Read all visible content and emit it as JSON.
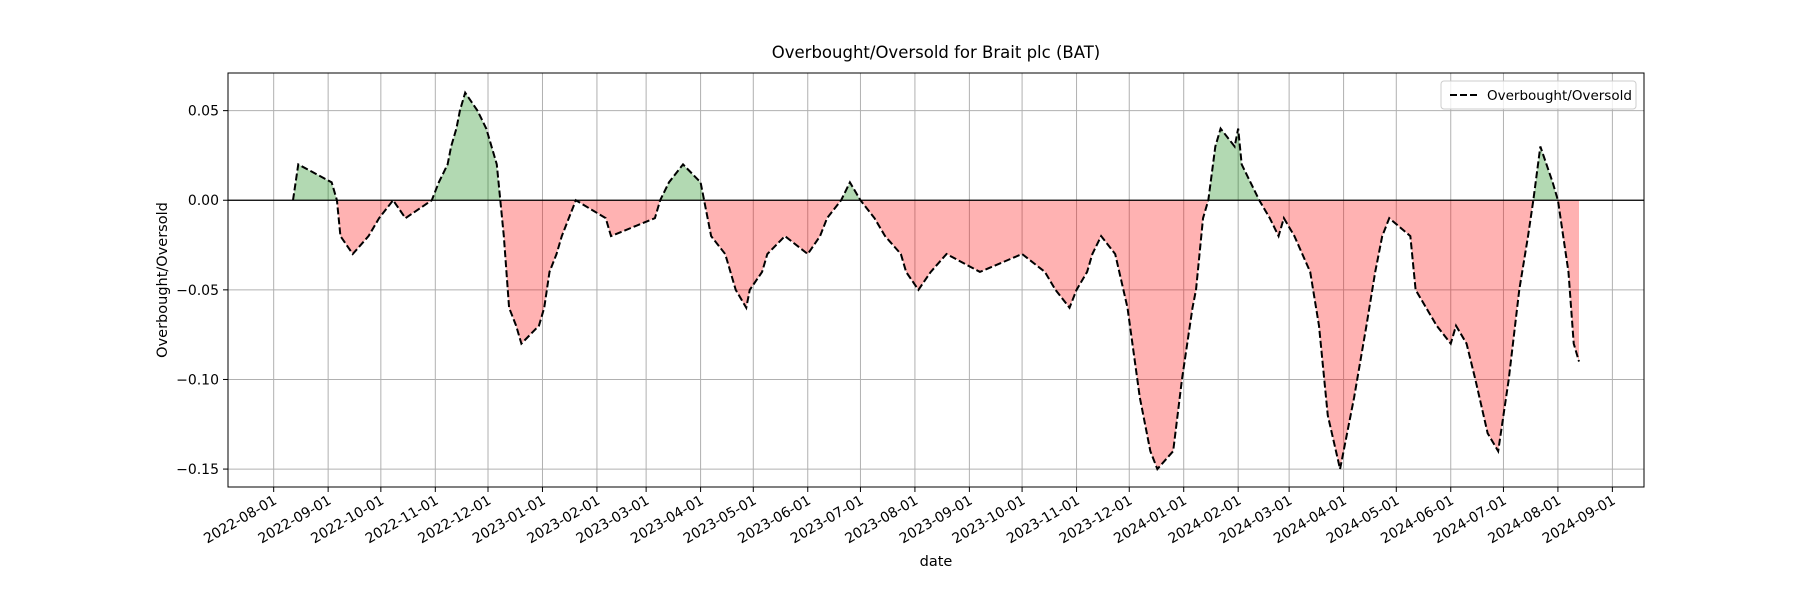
{
  "chart_data": {
    "type": "area-line",
    "title": "Overbought/Oversold for Brait plc (BAT)",
    "x_label": "date",
    "y_label": "Overbought/Oversold",
    "legend_position": "upper right",
    "grid": true,
    "hline": 0,
    "positive_color": "green",
    "negative_color": "red",
    "fill_alpha": 0.3,
    "xlim": [
      "2022-07-06",
      "2024-09-19"
    ],
    "ylim": [
      -0.16,
      0.071
    ],
    "xticks": [
      "2022-08-01",
      "2022-09-01",
      "2022-10-01",
      "2022-11-01",
      "2022-12-01",
      "2023-01-01",
      "2023-02-01",
      "2023-03-01",
      "2023-04-01",
      "2023-05-01",
      "2023-06-01",
      "2023-07-01",
      "2023-08-01",
      "2023-09-01",
      "2023-10-01",
      "2023-11-01",
      "2023-12-01",
      "2024-01-01",
      "2024-02-01",
      "2024-03-01",
      "2024-04-01",
      "2024-05-01",
      "2024-06-01",
      "2024-07-01",
      "2024-08-01",
      "2024-09-01"
    ],
    "yticks": [
      {
        "value": -0.15,
        "label": "−0.15"
      },
      {
        "value": -0.1,
        "label": "−0.10"
      },
      {
        "value": -0.05,
        "label": "−0.05"
      },
      {
        "value": 0,
        "label": "0.00"
      },
      0.05
    ],
    "x": [
      "2022-08-12",
      "2022-08-15",
      "2022-09-03",
      "2022-09-06",
      "2022-09-08",
      "2022-09-15",
      "2022-09-24",
      "2022-09-30",
      "2022-10-08",
      "2022-10-15",
      "2022-10-30",
      "2022-11-03",
      "2022-11-08",
      "2022-11-10",
      "2022-11-13",
      "2022-11-15",
      "2022-11-18",
      "2022-11-25",
      "2022-11-30",
      "2022-12-06",
      "2022-12-08",
      "2022-12-10",
      "2022-12-13",
      "2022-12-17",
      "2022-12-20",
      "2022-12-30",
      "2023-01-02",
      "2023-01-05",
      "2023-01-09",
      "2023-01-12",
      "2023-01-16",
      "2023-01-20",
      "2023-02-06",
      "2023-02-09",
      "2023-03-06",
      "2023-03-09",
      "2023-03-14",
      "2023-03-22",
      "2023-04-01",
      "2023-04-03",
      "2023-04-07",
      "2023-04-15",
      "2023-04-18",
      "2023-04-21",
      "2023-04-27",
      "2023-04-29",
      "2023-05-06",
      "2023-05-09",
      "2023-05-19",
      "2023-06-01",
      "2023-06-08",
      "2023-06-12",
      "2023-06-20",
      "2023-06-25",
      "2023-07-01",
      "2023-07-09",
      "2023-07-15",
      "2023-07-24",
      "2023-07-27",
      "2023-08-03",
      "2023-08-10",
      "2023-08-19",
      "2023-09-07",
      "2023-10-01",
      "2023-10-14",
      "2023-10-20",
      "2023-10-28",
      "2023-11-01",
      "2023-11-07",
      "2023-11-10",
      "2023-11-15",
      "2023-11-23",
      "2023-11-30",
      "2023-12-07",
      "2023-12-13",
      "2023-12-17",
      "2023-12-26",
      "2023-12-31",
      "2024-01-06",
      "2024-01-08",
      "2024-01-12",
      "2024-01-15",
      "2024-01-19",
      "2024-01-22",
      "2024-01-30",
      "2024-02-01",
      "2024-02-03",
      "2024-02-08",
      "2024-02-13",
      "2024-02-19",
      "2024-02-24",
      "2024-02-27",
      "2024-03-04",
      "2024-03-13",
      "2024-03-18",
      "2024-03-23",
      "2024-03-30",
      "2024-04-07",
      "2024-04-14",
      "2024-04-19",
      "2024-04-23",
      "2024-04-27",
      "2024-05-09",
      "2024-05-12",
      "2024-05-18",
      "2024-05-24",
      "2024-06-01",
      "2024-06-04",
      "2024-06-10",
      "2024-06-15",
      "2024-06-22",
      "2024-06-28",
      "2024-07-04",
      "2024-07-10",
      "2024-07-15",
      "2024-07-18",
      "2024-07-22",
      "2024-07-29",
      "2024-08-01",
      "2024-08-04",
      "2024-08-07",
      "2024-08-10",
      "2024-08-13"
    ],
    "series": [
      {
        "name": "Overbought/Oversold",
        "color": "#000000",
        "values": [
          0.0,
          0.02,
          0.01,
          0.0,
          -0.02,
          -0.03,
          -0.02,
          -0.01,
          0.0,
          -0.01,
          0.0,
          0.01,
          0.02,
          0.03,
          0.04,
          0.05,
          0.06,
          0.05,
          0.04,
          0.02,
          0.0,
          -0.02,
          -0.06,
          -0.07,
          -0.08,
          -0.07,
          -0.06,
          -0.04,
          -0.03,
          -0.02,
          -0.01,
          0.0,
          -0.01,
          -0.02,
          -0.01,
          0.0,
          0.01,
          0.02,
          0.01,
          0.0,
          -0.02,
          -0.03,
          -0.04,
          -0.05,
          -0.06,
          -0.05,
          -0.04,
          -0.03,
          -0.02,
          -0.03,
          -0.02,
          -0.01,
          0.0,
          0.01,
          0.0,
          -0.01,
          -0.02,
          -0.03,
          -0.04,
          -0.05,
          -0.04,
          -0.03,
          -0.04,
          -0.03,
          -0.04,
          -0.05,
          -0.06,
          -0.05,
          -0.04,
          -0.03,
          -0.02,
          -0.03,
          -0.06,
          -0.11,
          -0.14,
          -0.15,
          -0.14,
          -0.1,
          -0.06,
          -0.05,
          -0.01,
          0.0,
          0.03,
          0.04,
          0.03,
          0.04,
          0.02,
          0.01,
          0.0,
          -0.01,
          -0.02,
          -0.01,
          -0.02,
          -0.04,
          -0.07,
          -0.12,
          -0.15,
          -0.11,
          -0.07,
          -0.04,
          -0.02,
          -0.01,
          -0.02,
          -0.05,
          -0.06,
          -0.07,
          -0.08,
          -0.07,
          -0.08,
          -0.1,
          -0.13,
          -0.14,
          -0.1,
          -0.05,
          -0.02,
          0.0,
          0.03,
          0.01,
          0.0,
          -0.02,
          -0.04,
          -0.08,
          -0.09
        ]
      }
    ]
  }
}
